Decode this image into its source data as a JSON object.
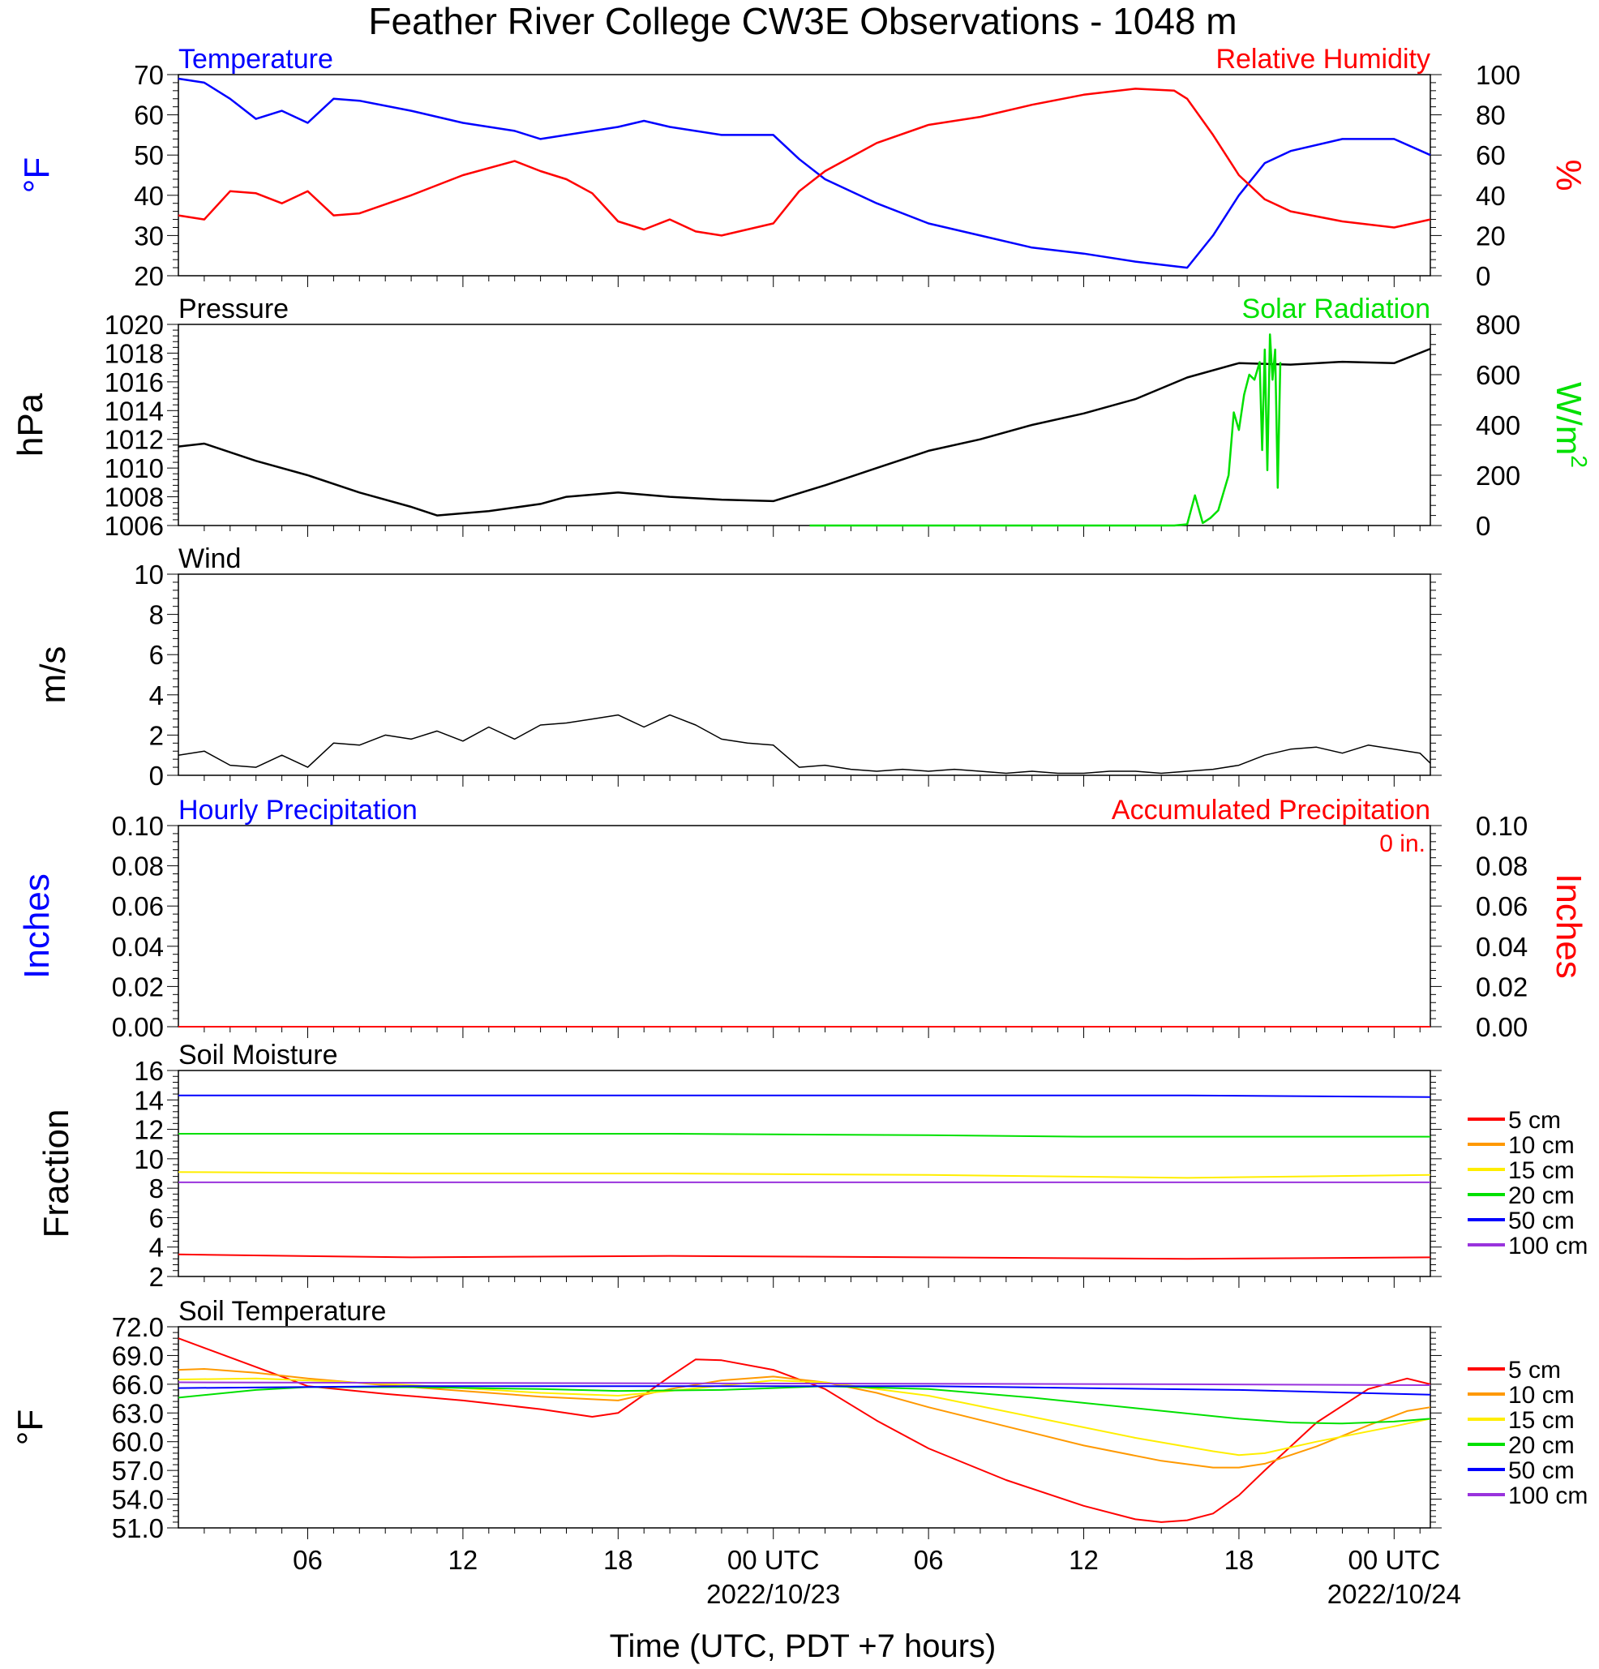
{
  "title": "Feather River College CW3E Observations - 1048 m",
  "xaxis": {
    "label": "Time (UTC, PDT +7 hours)",
    "ticks": [
      {
        "hour": 6,
        "label": "06"
      },
      {
        "hour": 12,
        "label": "12"
      },
      {
        "hour": 18,
        "label": "18"
      },
      {
        "hour": 24,
        "label": "00 UTC",
        "date": "2022/10/23"
      },
      {
        "hour": 30,
        "label": "06"
      },
      {
        "hour": 36,
        "label": "12"
      },
      {
        "hour": 42,
        "label": "18"
      },
      {
        "hour": 48,
        "label": "00 UTC",
        "date": "2022/10/24"
      }
    ],
    "range_hours": [
      1,
      49.4
    ]
  },
  "colors": {
    "temperature": "#0000ff",
    "humidity": "#ff0000",
    "pressure": "#000000",
    "solar": "#00e000",
    "wind": "#000000",
    "wind_barb": "#ff0000",
    "depths": [
      "#ff0000",
      "#ff9900",
      "#ffee00",
      "#00e000",
      "#0000ff",
      "#9933dd"
    ]
  },
  "chart_data": [
    {
      "type": "line",
      "panel": "temperature-humidity",
      "left_label": "Temperature",
      "right_label": "Relative Humidity",
      "left_unit": "°F",
      "right_unit": "%",
      "left_ticks": [
        "20",
        "30",
        "40",
        "50",
        "60",
        "70"
      ],
      "right_ticks": [
        "0",
        "20",
        "40",
        "60",
        "80",
        "100"
      ],
      "left_range": [
        20,
        70
      ],
      "right_range": [
        0,
        100
      ],
      "series": [
        {
          "name": "Temperature",
          "x": [
            1,
            2,
            3,
            4,
            5,
            6,
            7,
            8,
            10,
            12,
            14,
            15,
            16,
            18,
            19,
            20,
            22,
            24,
            25,
            26,
            28,
            30,
            32,
            34,
            36,
            38,
            40,
            41,
            42,
            43,
            44,
            46,
            48,
            49.4
          ],
          "y": [
            69,
            68,
            64,
            59,
            61,
            58,
            64,
            63.5,
            61,
            58,
            56,
            54,
            55,
            57,
            58.5,
            57,
            55,
            55,
            49,
            44,
            38,
            33,
            30,
            27,
            25.5,
            23.5,
            22,
            30,
            40,
            48,
            51,
            54,
            54,
            50
          ]
        },
        {
          "name": "Relative Humidity",
          "x": [
            1,
            2,
            3,
            4,
            5,
            6,
            7,
            8,
            10,
            12,
            14,
            15,
            16,
            17,
            18,
            19,
            20,
            21,
            22,
            24,
            25,
            26,
            28,
            30,
            32,
            34,
            36,
            38,
            39.5,
            40,
            41,
            42,
            43,
            44,
            46,
            48,
            49.4
          ],
          "y": [
            30,
            28,
            42,
            41,
            36,
            42,
            30,
            31,
            40,
            50,
            57,
            52,
            48,
            41,
            27,
            23,
            28,
            22,
            20,
            26,
            42,
            52,
            66,
            75,
            79,
            85,
            90,
            93,
            92,
            88,
            70,
            50,
            38,
            32,
            27,
            24,
            28
          ]
        }
      ]
    },
    {
      "type": "line",
      "panel": "pressure-solar",
      "left_label": "Pressure",
      "right_label": "Solar Radiation",
      "left_unit": "hPa",
      "right_unit": "W/m",
      "right_unit_sup": "2",
      "left_ticks": [
        "1006",
        "1008",
        "1010",
        "1012",
        "1014",
        "1016",
        "1018",
        "1020"
      ],
      "right_ticks": [
        "0",
        "200",
        "400",
        "600",
        "800"
      ],
      "left_range": [
        1006,
        1020
      ],
      "right_range": [
        0,
        800
      ],
      "series": [
        {
          "name": "Pressure",
          "x": [
            1,
            2,
            4,
            6,
            8,
            10,
            11,
            13,
            15,
            16,
            18,
            20,
            22,
            24,
            26,
            28,
            30,
            32,
            34,
            36,
            38,
            40,
            42,
            44,
            46,
            48,
            49.4
          ],
          "y": [
            1011.5,
            1011.7,
            1010.5,
            1009.5,
            1008.3,
            1007.3,
            1006.7,
            1007.0,
            1007.5,
            1008.0,
            1008.3,
            1008.0,
            1007.8,
            1007.7,
            1008.8,
            1010.0,
            1011.2,
            1012.0,
            1013.0,
            1013.8,
            1014.8,
            1016.3,
            1017.3,
            1017.2,
            1017.4,
            1017.3,
            1018.3
          ]
        },
        {
          "name": "Solar Radiation",
          "x": [
            25.4,
            30,
            35,
            39.5,
            40,
            40.3,
            40.6,
            40.9,
            41.2,
            41.6,
            41.8,
            42.0,
            42.2,
            42.4,
            42.6,
            42.8,
            42.9,
            43.0,
            43.1,
            43.2,
            43.3,
            43.4,
            43.5,
            43.6
          ],
          "y": [
            0,
            0,
            0,
            0,
            5,
            120,
            10,
            30,
            60,
            200,
            450,
            380,
            520,
            600,
            580,
            650,
            300,
            700,
            220,
            760,
            580,
            700,
            150,
            650
          ]
        }
      ]
    },
    {
      "type": "line",
      "panel": "wind",
      "left_label": "Wind",
      "left_unit": "m/s",
      "left_ticks": [
        "0",
        "2",
        "4",
        "6",
        "8",
        "10"
      ],
      "left_range": [
        0,
        10
      ],
      "series": [
        {
          "name": "Wind",
          "x": [
            1,
            2,
            3,
            4,
            5,
            6,
            7,
            8,
            9,
            10,
            11,
            12,
            13,
            14,
            15,
            16,
            17,
            18,
            19,
            20,
            21,
            22,
            23,
            24,
            25,
            26,
            27,
            28,
            29,
            30,
            31,
            32,
            33,
            34,
            35,
            36,
            37,
            38,
            39,
            40,
            41,
            42,
            43,
            44,
            45,
            46,
            47,
            48,
            49,
            49.4
          ],
          "y": [
            1.0,
            1.2,
            0.5,
            0.4,
            1.0,
            0.4,
            1.6,
            1.5,
            2.0,
            1.8,
            2.2,
            1.7,
            2.4,
            1.8,
            2.5,
            2.6,
            2.8,
            3.0,
            2.4,
            3.0,
            2.5,
            1.8,
            1.6,
            1.5,
            0.4,
            0.5,
            0.3,
            0.2,
            0.3,
            0.2,
            0.3,
            0.2,
            0.1,
            0.2,
            0.1,
            0.1,
            0.2,
            0.2,
            0.1,
            0.2,
            0.3,
            0.5,
            1.0,
            1.3,
            1.4,
            1.1,
            1.5,
            1.3,
            1.1,
            0.6
          ]
        }
      ]
    },
    {
      "type": "line",
      "panel": "precipitation",
      "left_label": "Hourly Precipitation",
      "right_label": "Accumulated Precipitation",
      "left_unit": "Inches",
      "right_unit": "Inches",
      "accumulated_total": "0 in.",
      "left_ticks": [
        "0.00",
        "0.02",
        "0.04",
        "0.06",
        "0.08",
        "0.10"
      ],
      "right_ticks": [
        "0.00",
        "0.02",
        "0.04",
        "0.06",
        "0.08",
        "0.10"
      ],
      "left_range": [
        0,
        0.1
      ],
      "series": [
        {
          "name": "Hourly Precipitation",
          "x": [
            1,
            49.4
          ],
          "y": [
            0,
            0
          ]
        },
        {
          "name": "Accumulated Precipitation",
          "x": [
            1,
            49.4
          ],
          "y": [
            0,
            0
          ]
        }
      ]
    },
    {
      "type": "line",
      "panel": "soil-moisture",
      "left_label": "Soil Moisture",
      "left_unit": "Fraction",
      "left_ticks": [
        "2",
        "4",
        "6",
        "8",
        "10",
        "12",
        "14",
        "16"
      ],
      "left_range": [
        2,
        16
      ],
      "legend": [
        "5 cm",
        "10 cm",
        "15 cm",
        "20 cm",
        "50 cm",
        "100 cm"
      ],
      "series": [
        {
          "name": "5 cm",
          "x": [
            1,
            10,
            20,
            30,
            40,
            49.4
          ],
          "y": [
            3.5,
            3.3,
            3.4,
            3.3,
            3.2,
            3.3
          ]
        },
        {
          "name": "15 cm",
          "x": [
            1,
            10,
            20,
            30,
            40,
            49.4
          ],
          "y": [
            9.1,
            9.0,
            9.0,
            8.9,
            8.7,
            8.9
          ]
        },
        {
          "name": "20 cm",
          "x": [
            1,
            10,
            20,
            30,
            36,
            49.4
          ],
          "y": [
            11.7,
            11.7,
            11.7,
            11.6,
            11.5,
            11.5
          ]
        },
        {
          "name": "50 cm",
          "x": [
            1,
            20,
            40,
            49.4
          ],
          "y": [
            14.3,
            14.3,
            14.3,
            14.2
          ]
        },
        {
          "name": "100 cm",
          "x": [
            1,
            20,
            40,
            49.4
          ],
          "y": [
            8.4,
            8.4,
            8.4,
            8.4
          ]
        }
      ]
    },
    {
      "type": "line",
      "panel": "soil-temperature",
      "left_label": "Soil Temperature",
      "left_unit": "°F",
      "left_ticks": [
        "51.0",
        "54.0",
        "57.0",
        "60.0",
        "63.0",
        "66.0",
        "69.0",
        "72.0"
      ],
      "left_range": [
        51,
        72
      ],
      "legend": [
        "5 cm",
        "10 cm",
        "15 cm",
        "20 cm",
        "50 cm",
        "100 cm"
      ],
      "series": [
        {
          "name": "5 cm",
          "x": [
            1,
            3,
            6,
            9,
            12,
            15,
            17,
            18,
            20,
            21,
            22,
            24,
            26,
            28,
            30,
            33,
            36,
            38,
            39,
            40,
            41,
            42,
            43,
            45,
            47,
            48.5,
            49.4
          ],
          "y": [
            70.8,
            68.8,
            65.8,
            65.0,
            64.3,
            63.4,
            62.6,
            63.0,
            66.8,
            68.6,
            68.5,
            67.5,
            65.5,
            62.2,
            59.3,
            56.0,
            53.3,
            51.9,
            51.6,
            51.8,
            52.5,
            54.4,
            57.0,
            62.0,
            65.5,
            66.6,
            66.0
          ]
        },
        {
          "name": "10 cm",
          "x": [
            1,
            2,
            4,
            6,
            9,
            12,
            15,
            18,
            20,
            22,
            24,
            26,
            28,
            30,
            33,
            36,
            39,
            41,
            42,
            43,
            45,
            47,
            48.5,
            49.4
          ],
          "y": [
            67.5,
            67.6,
            67.2,
            66.6,
            65.9,
            65.3,
            64.7,
            64.3,
            65.5,
            66.4,
            66.8,
            66.2,
            65.1,
            63.6,
            61.6,
            59.6,
            58.0,
            57.3,
            57.3,
            57.7,
            59.5,
            61.7,
            63.2,
            63.6
          ]
        },
        {
          "name": "15 cm",
          "x": [
            1,
            4,
            6,
            10,
            15,
            18,
            20,
            24,
            26,
            30,
            34,
            38,
            41,
            42,
            43,
            45,
            48,
            49.4
          ],
          "y": [
            66.5,
            66.6,
            66.4,
            65.9,
            65.1,
            64.8,
            65.3,
            66.4,
            66.2,
            64.8,
            62.6,
            60.4,
            59.0,
            58.6,
            58.8,
            60.0,
            61.6,
            62.4
          ]
        },
        {
          "name": "20 cm",
          "x": [
            1,
            4,
            6,
            10,
            15,
            18,
            22,
            24,
            26,
            30,
            34,
            38,
            42,
            44,
            46,
            48,
            49.4
          ],
          "y": [
            64.6,
            65.4,
            65.7,
            65.7,
            65.5,
            65.3,
            65.4,
            65.6,
            65.8,
            65.5,
            64.6,
            63.5,
            62.4,
            62.0,
            61.9,
            62.1,
            62.4
          ]
        },
        {
          "name": "50 cm",
          "x": [
            1,
            10,
            20,
            24,
            30,
            36,
            42,
            49.4
          ],
          "y": [
            65.6,
            65.8,
            65.8,
            65.8,
            65.8,
            65.6,
            65.4,
            64.9
          ]
        },
        {
          "name": "100 cm",
          "x": [
            1,
            20,
            40,
            49.4
          ],
          "y": [
            66.2,
            66.1,
            66.0,
            65.9
          ]
        }
      ]
    }
  ]
}
